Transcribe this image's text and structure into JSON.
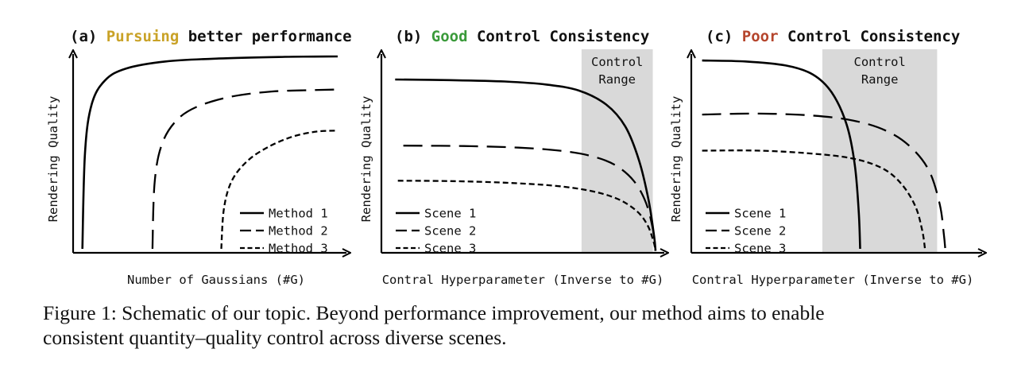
{
  "chart_data": [
    {
      "type": "line",
      "panel_label": "(a)",
      "title_highlight": "Pursuing",
      "title_rest": "better performance",
      "title_highlight_color": "#c9a227",
      "xlabel": "Number of Gaussians (#G)",
      "ylabel": "Rendering Quality",
      "x_range": [
        0,
        10
      ],
      "y_range": [
        0,
        10
      ],
      "legend_position": "bottom-right",
      "series": [
        {
          "name": "Method 1",
          "style": "solid",
          "x": [
            0.35,
            0.45,
            0.7,
            1.2,
            2.0,
            3.5,
            5.5,
            8.0,
            10.0
          ],
          "y": [
            0.2,
            5.0,
            7.4,
            8.6,
            9.2,
            9.55,
            9.7,
            9.78,
            9.8
          ]
        },
        {
          "name": "Method 2",
          "style": "long-dash",
          "x": [
            3.0,
            3.08,
            3.35,
            3.9,
            4.7,
            6.0,
            7.5,
            9.0,
            10.0
          ],
          "y": [
            0.2,
            3.5,
            5.4,
            6.6,
            7.3,
            7.8,
            8.05,
            8.12,
            8.15
          ]
        },
        {
          "name": "Method 3",
          "style": "short-dash",
          "x": [
            5.6,
            5.7,
            6.0,
            6.6,
            7.4,
            8.3,
            9.2,
            10.0
          ],
          "y": [
            0.2,
            2.2,
            3.6,
            4.6,
            5.3,
            5.8,
            6.05,
            6.1
          ]
        }
      ]
    },
    {
      "type": "line",
      "panel_label": "(b)",
      "title_highlight": "Good",
      "title_rest": "Control Consistency",
      "title_highlight_color": "#3a9a3a",
      "xlabel": "Contral Hyperparameter (Inverse to #G)",
      "ylabel": "Rendering Quality",
      "x_range": [
        0,
        10
      ],
      "y_range": [
        0,
        10
      ],
      "control_range": {
        "label_line1": "Control",
        "label_line2": "Range",
        "x_from": 7.3,
        "x_to": 9.9
      },
      "legend_position": "bottom-left",
      "series": [
        {
          "name": "Scene 1",
          "style": "solid",
          "x": [
            0.5,
            2.5,
            4.5,
            6.0,
            7.2,
            8.2,
            8.9,
            9.4,
            9.75,
            9.95,
            10.0
          ],
          "y": [
            8.65,
            8.62,
            8.55,
            8.4,
            8.1,
            7.4,
            6.3,
            4.6,
            2.6,
            0.8,
            0.1
          ]
        },
        {
          "name": "Scene 2",
          "style": "long-dash",
          "x": [
            0.8,
            3.0,
            5.0,
            6.5,
            7.6,
            8.5,
            9.2,
            9.65,
            9.9,
            10.0
          ],
          "y": [
            5.35,
            5.33,
            5.25,
            5.1,
            4.85,
            4.4,
            3.6,
            2.5,
            1.2,
            0.1
          ]
        },
        {
          "name": "Scene 3",
          "style": "short-dash",
          "x": [
            0.6,
            2.5,
            4.5,
            6.3,
            7.6,
            8.6,
            9.3,
            9.7,
            9.92,
            10.0
          ],
          "y": [
            3.6,
            3.58,
            3.5,
            3.35,
            3.1,
            2.7,
            2.1,
            1.4,
            0.6,
            0.1
          ]
        }
      ]
    },
    {
      "type": "line",
      "panel_label": "(c)",
      "title_highlight": "Poor",
      "title_rest": "Control Consistency",
      "title_highlight_color": "#b5452c",
      "xlabel": "Contral Hyperparameter (Inverse to #G)",
      "ylabel": "Rendering Quality",
      "x_range": [
        0,
        10
      ],
      "y_range": [
        0,
        10
      ],
      "control_range": {
        "label_line1": "Control",
        "label_line2": "Range",
        "x_from": 4.85,
        "x_to": 9.1
      },
      "legend_position": "bottom-left",
      "series": [
        {
          "name": "Scene 1",
          "style": "solid",
          "x": [
            0.4,
            2.0,
            3.5,
            4.5,
            5.2,
            5.75,
            6.05,
            6.2,
            6.25
          ],
          "y": [
            9.6,
            9.55,
            9.35,
            8.9,
            8.0,
            6.4,
            4.4,
            2.0,
            0.2
          ]
        },
        {
          "name": "Scene 2",
          "style": "long-dash",
          "x": [
            0.4,
            2.5,
            4.5,
            6.0,
            7.2,
            8.1,
            8.8,
            9.2,
            9.35,
            9.4
          ],
          "y": [
            6.9,
            6.95,
            6.85,
            6.6,
            6.1,
            5.3,
            4.1,
            2.4,
            0.9,
            0.2
          ]
        },
        {
          "name": "Scene 3",
          "style": "short-dash",
          "x": [
            0.4,
            2.5,
            4.5,
            6.0,
            7.1,
            7.8,
            8.3,
            8.55,
            8.65
          ],
          "y": [
            5.1,
            5.1,
            4.95,
            4.7,
            4.2,
            3.4,
            2.3,
            1.1,
            0.2
          ]
        }
      ]
    }
  ],
  "caption": {
    "label": "Figure 1:",
    "line1": "Schematic of our topic. Beyond performance improvement, our method aims to enable",
    "line2": "consistent quantity–quality control across diverse scenes."
  },
  "colors": {
    "axis": "#000000",
    "control_range_fill": "#d9d9d9"
  }
}
